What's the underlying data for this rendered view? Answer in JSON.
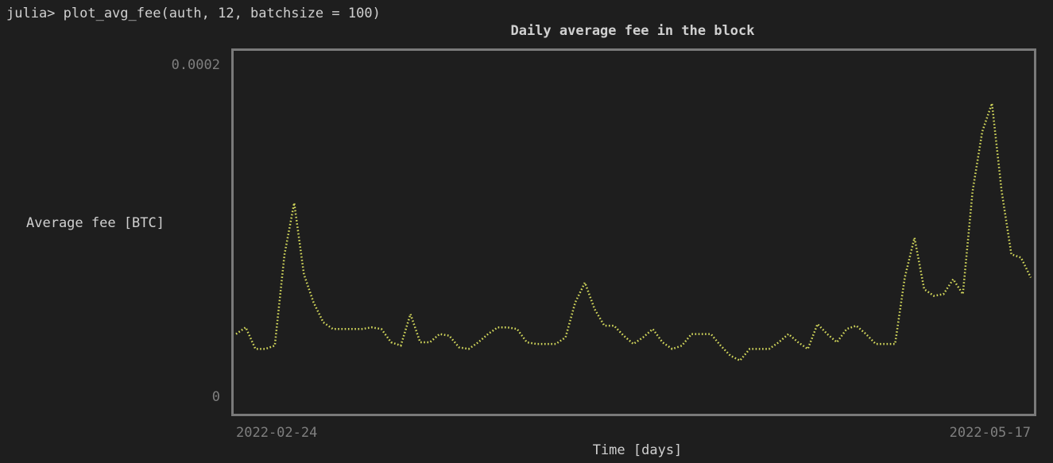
{
  "prompt": "julia> plot_avg_fee(auth, 12, batchsize = 100)",
  "chart_data": {
    "type": "line",
    "title": "Daily average fee in the block",
    "ylabel": "Average fee [BTC]",
    "xlabel": "Time [days]",
    "color": "#d4d95c",
    "ylim": [
      0,
      0.0002
    ],
    "yticks": [
      0,
      0.0002
    ],
    "categories": [
      "2022-02-24",
      null,
      null,
      null,
      null,
      null,
      null,
      null,
      null,
      null,
      null,
      null,
      null,
      null,
      null,
      null,
      null,
      null,
      null,
      null,
      null,
      null,
      null,
      null,
      null,
      null,
      null,
      null,
      null,
      null,
      null,
      null,
      null,
      null,
      null,
      null,
      null,
      null,
      null,
      null,
      null,
      null,
      null,
      null,
      null,
      null,
      null,
      null,
      null,
      null,
      null,
      null,
      null,
      null,
      null,
      null,
      null,
      null,
      null,
      null,
      null,
      null,
      null,
      null,
      null,
      null,
      null,
      null,
      null,
      null,
      null,
      null,
      null,
      null,
      null,
      null,
      null,
      null,
      null,
      null,
      null,
      null,
      "2022-05-17"
    ],
    "values": [
      3.8e-05,
      4.2e-05,
      2.9e-05,
      2.9e-05,
      3.1e-05,
      8.6e-05,
      0.000117,
      7.4e-05,
      5.7e-05,
      4.5e-05,
      4.1e-05,
      4.1e-05,
      4.1e-05,
      4.1e-05,
      4.2e-05,
      4.1e-05,
      3.3e-05,
      3.1e-05,
      5e-05,
      3.3e-05,
      3.3e-05,
      3.8e-05,
      3.7e-05,
      3e-05,
      2.9e-05,
      3.3e-05,
      3.8e-05,
      4.2e-05,
      4.2e-05,
      4.1e-05,
      3.3e-05,
      3.2e-05,
      3.2e-05,
      3.2e-05,
      3.6e-05,
      5.7e-05,
      6.9e-05,
      5.3e-05,
      4.3e-05,
      4.3e-05,
      3.7e-05,
      3.2e-05,
      3.6e-05,
      4.1e-05,
      3.3e-05,
      2.9e-05,
      3.1e-05,
      3.8e-05,
      3.8e-05,
      3.8e-05,
      3.1e-05,
      2.5e-05,
      2.2e-05,
      2.9e-05,
      2.9e-05,
      2.9e-05,
      3.3e-05,
      3.8e-05,
      3.3e-05,
      2.9e-05,
      4.4e-05,
      3.8e-05,
      3.3e-05,
      4.1e-05,
      4.3e-05,
      3.8e-05,
      3.2e-05,
      3.2e-05,
      3.2e-05,
      7.2e-05,
      9.6e-05,
      6.5e-05,
      6.1e-05,
      6.2e-05,
      7.1e-05,
      6.2e-05,
      0.000124,
      0.00016,
      0.000177,
      0.000124,
      8.6e-05,
      8.4e-05,
      7.2e-05
    ]
  }
}
